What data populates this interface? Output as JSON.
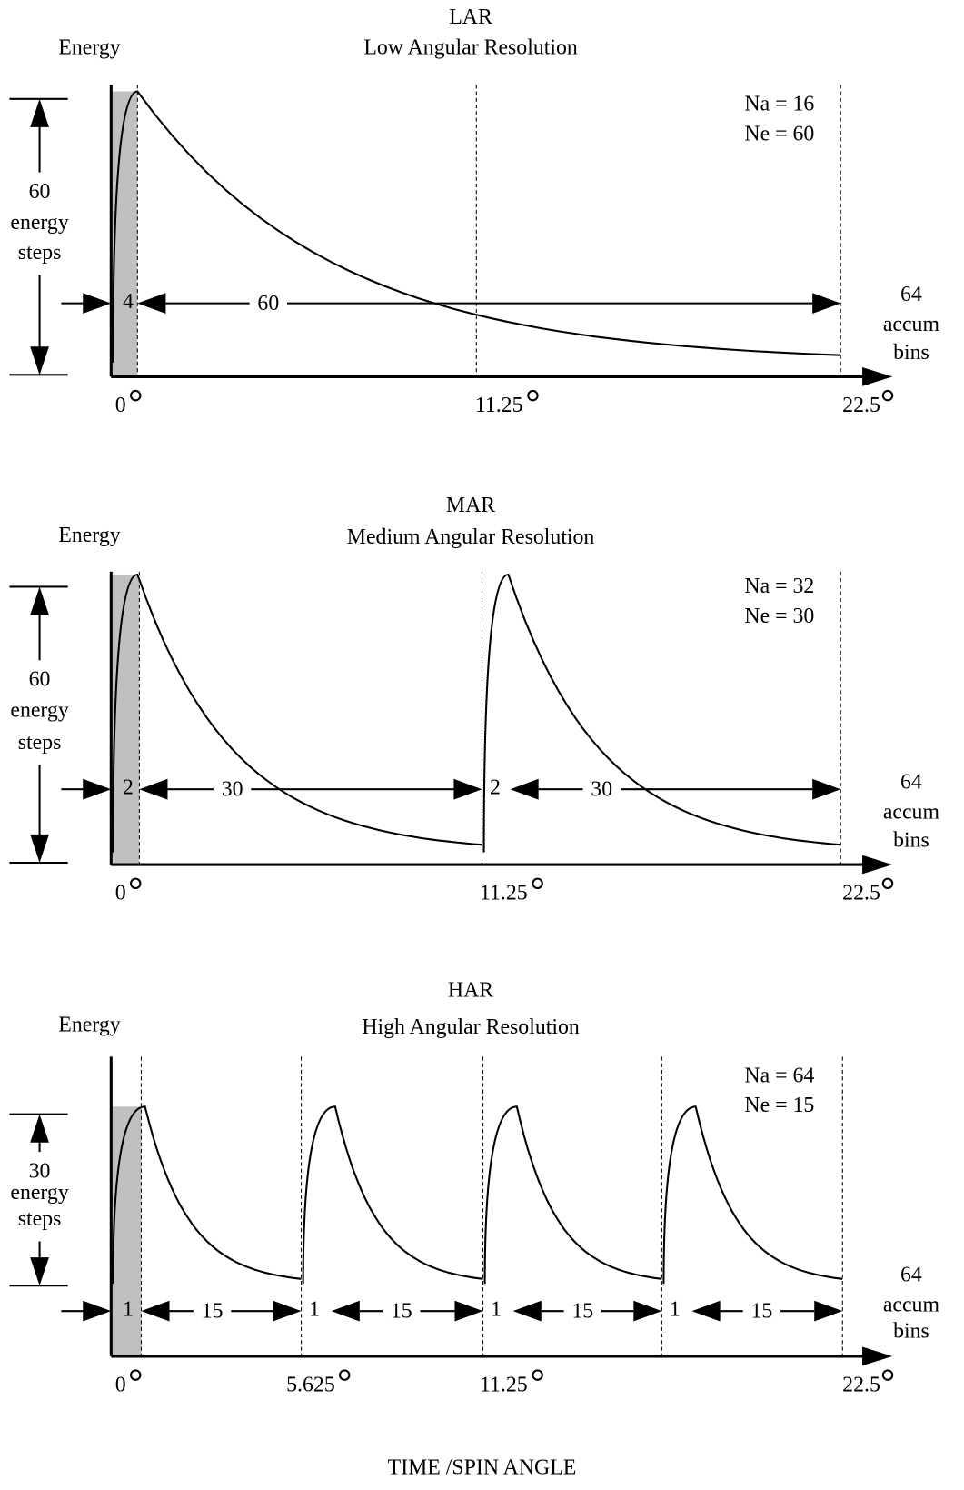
{
  "panels": [
    {
      "title": "LAR",
      "subtitle": "Low Angular Resolution",
      "axis_label": "Energy",
      "steps_label": [
        "60",
        "energy",
        "steps"
      ],
      "params": [
        "Na = 16",
        "Ne = 60"
      ],
      "intervals": [
        "4",
        "60"
      ],
      "bins_label": [
        "64",
        "accum",
        "bins"
      ],
      "angles": [
        "0",
        "11.25",
        "22.5"
      ]
    },
    {
      "title": "MAR",
      "subtitle": "Medium Angular Resolution",
      "axis_label": "Energy",
      "steps_label": [
        "60",
        "energy",
        "steps"
      ],
      "params": [
        "Na = 32",
        "Ne = 30"
      ],
      "intervals": [
        "2",
        "30",
        "2",
        "30"
      ],
      "bins_label": [
        "64",
        "accum",
        "bins"
      ],
      "angles": [
        "0",
        "11.25",
        "22.5"
      ]
    },
    {
      "title": "HAR",
      "subtitle": "High Angular Resolution",
      "axis_label": "Energy",
      "steps_label": [
        "30",
        "energy",
        "steps"
      ],
      "params": [
        "Na = 64",
        "Ne = 15"
      ],
      "intervals": [
        "1",
        "15",
        "1",
        "15",
        "1",
        "15",
        "1",
        "15"
      ],
      "bins_label": [
        "64",
        "accum",
        "bins"
      ],
      "angles": [
        "0",
        "5.625",
        "11.25",
        "22.5"
      ]
    }
  ],
  "footer": "TIME /SPIN ANGLE"
}
